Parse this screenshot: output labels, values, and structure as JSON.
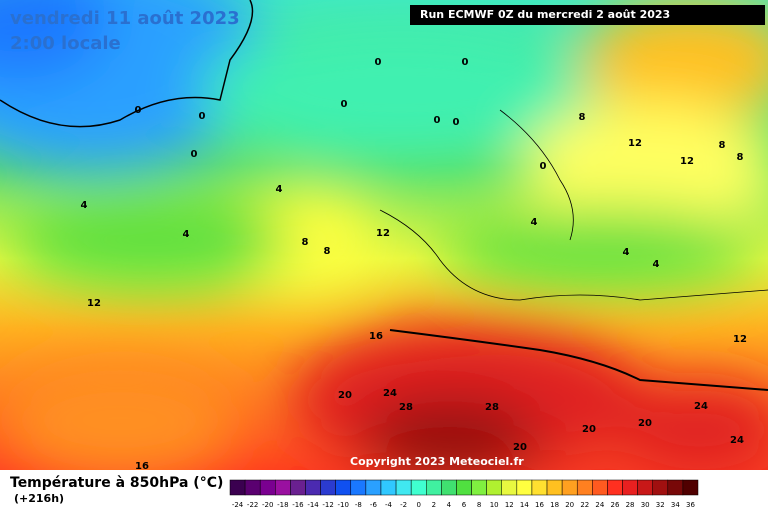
{
  "header": {
    "title": "vendredi 11 août 2023",
    "time": "2:00 locale",
    "run": "Run ECMWF 0Z du mercredi 2 août 2023"
  },
  "footer": {
    "variable": "Température à 850hPa (°C)",
    "lead": "(+216h)",
    "copyright": "Copyright 2023 Meteociel.fr"
  },
  "colorbar": {
    "ticks": [
      -24,
      -22,
      -20,
      -18,
      -16,
      -14,
      -12,
      -10,
      -8,
      -6,
      -4,
      -2,
      0,
      2,
      4,
      6,
      8,
      10,
      12,
      14,
      16,
      18,
      20,
      22,
      24,
      26,
      28,
      30,
      32,
      34,
      36
    ],
    "colors": [
      "#3b0050",
      "#5a0070",
      "#7a0090",
      "#9a10a0",
      "#6a2090",
      "#4b2ab0",
      "#2b3bd0",
      "#1050f0",
      "#1a78ff",
      "#2aa0ff",
      "#30c8ff",
      "#40e8f0",
      "#40ffd0",
      "#40f0a0",
      "#40e070",
      "#50e040",
      "#80f040",
      "#b0f030",
      "#e8f840",
      "#ffff40",
      "#ffe030",
      "#ffc020",
      "#ffa020",
      "#ff8020",
      "#ff5a20",
      "#ff3020",
      "#e82020",
      "#c81818",
      "#a01010",
      "#780808",
      "#500000"
    ]
  },
  "contour_labels": [
    0,
    0,
    0,
    0,
    0,
    0,
    0,
    0,
    0,
    4,
    4,
    4,
    4,
    4,
    4,
    8,
    8,
    8,
    8,
    8,
    12,
    12,
    12,
    12,
    12,
    16,
    16,
    20,
    20,
    20,
    20,
    24,
    24,
    24,
    28,
    28
  ]
}
